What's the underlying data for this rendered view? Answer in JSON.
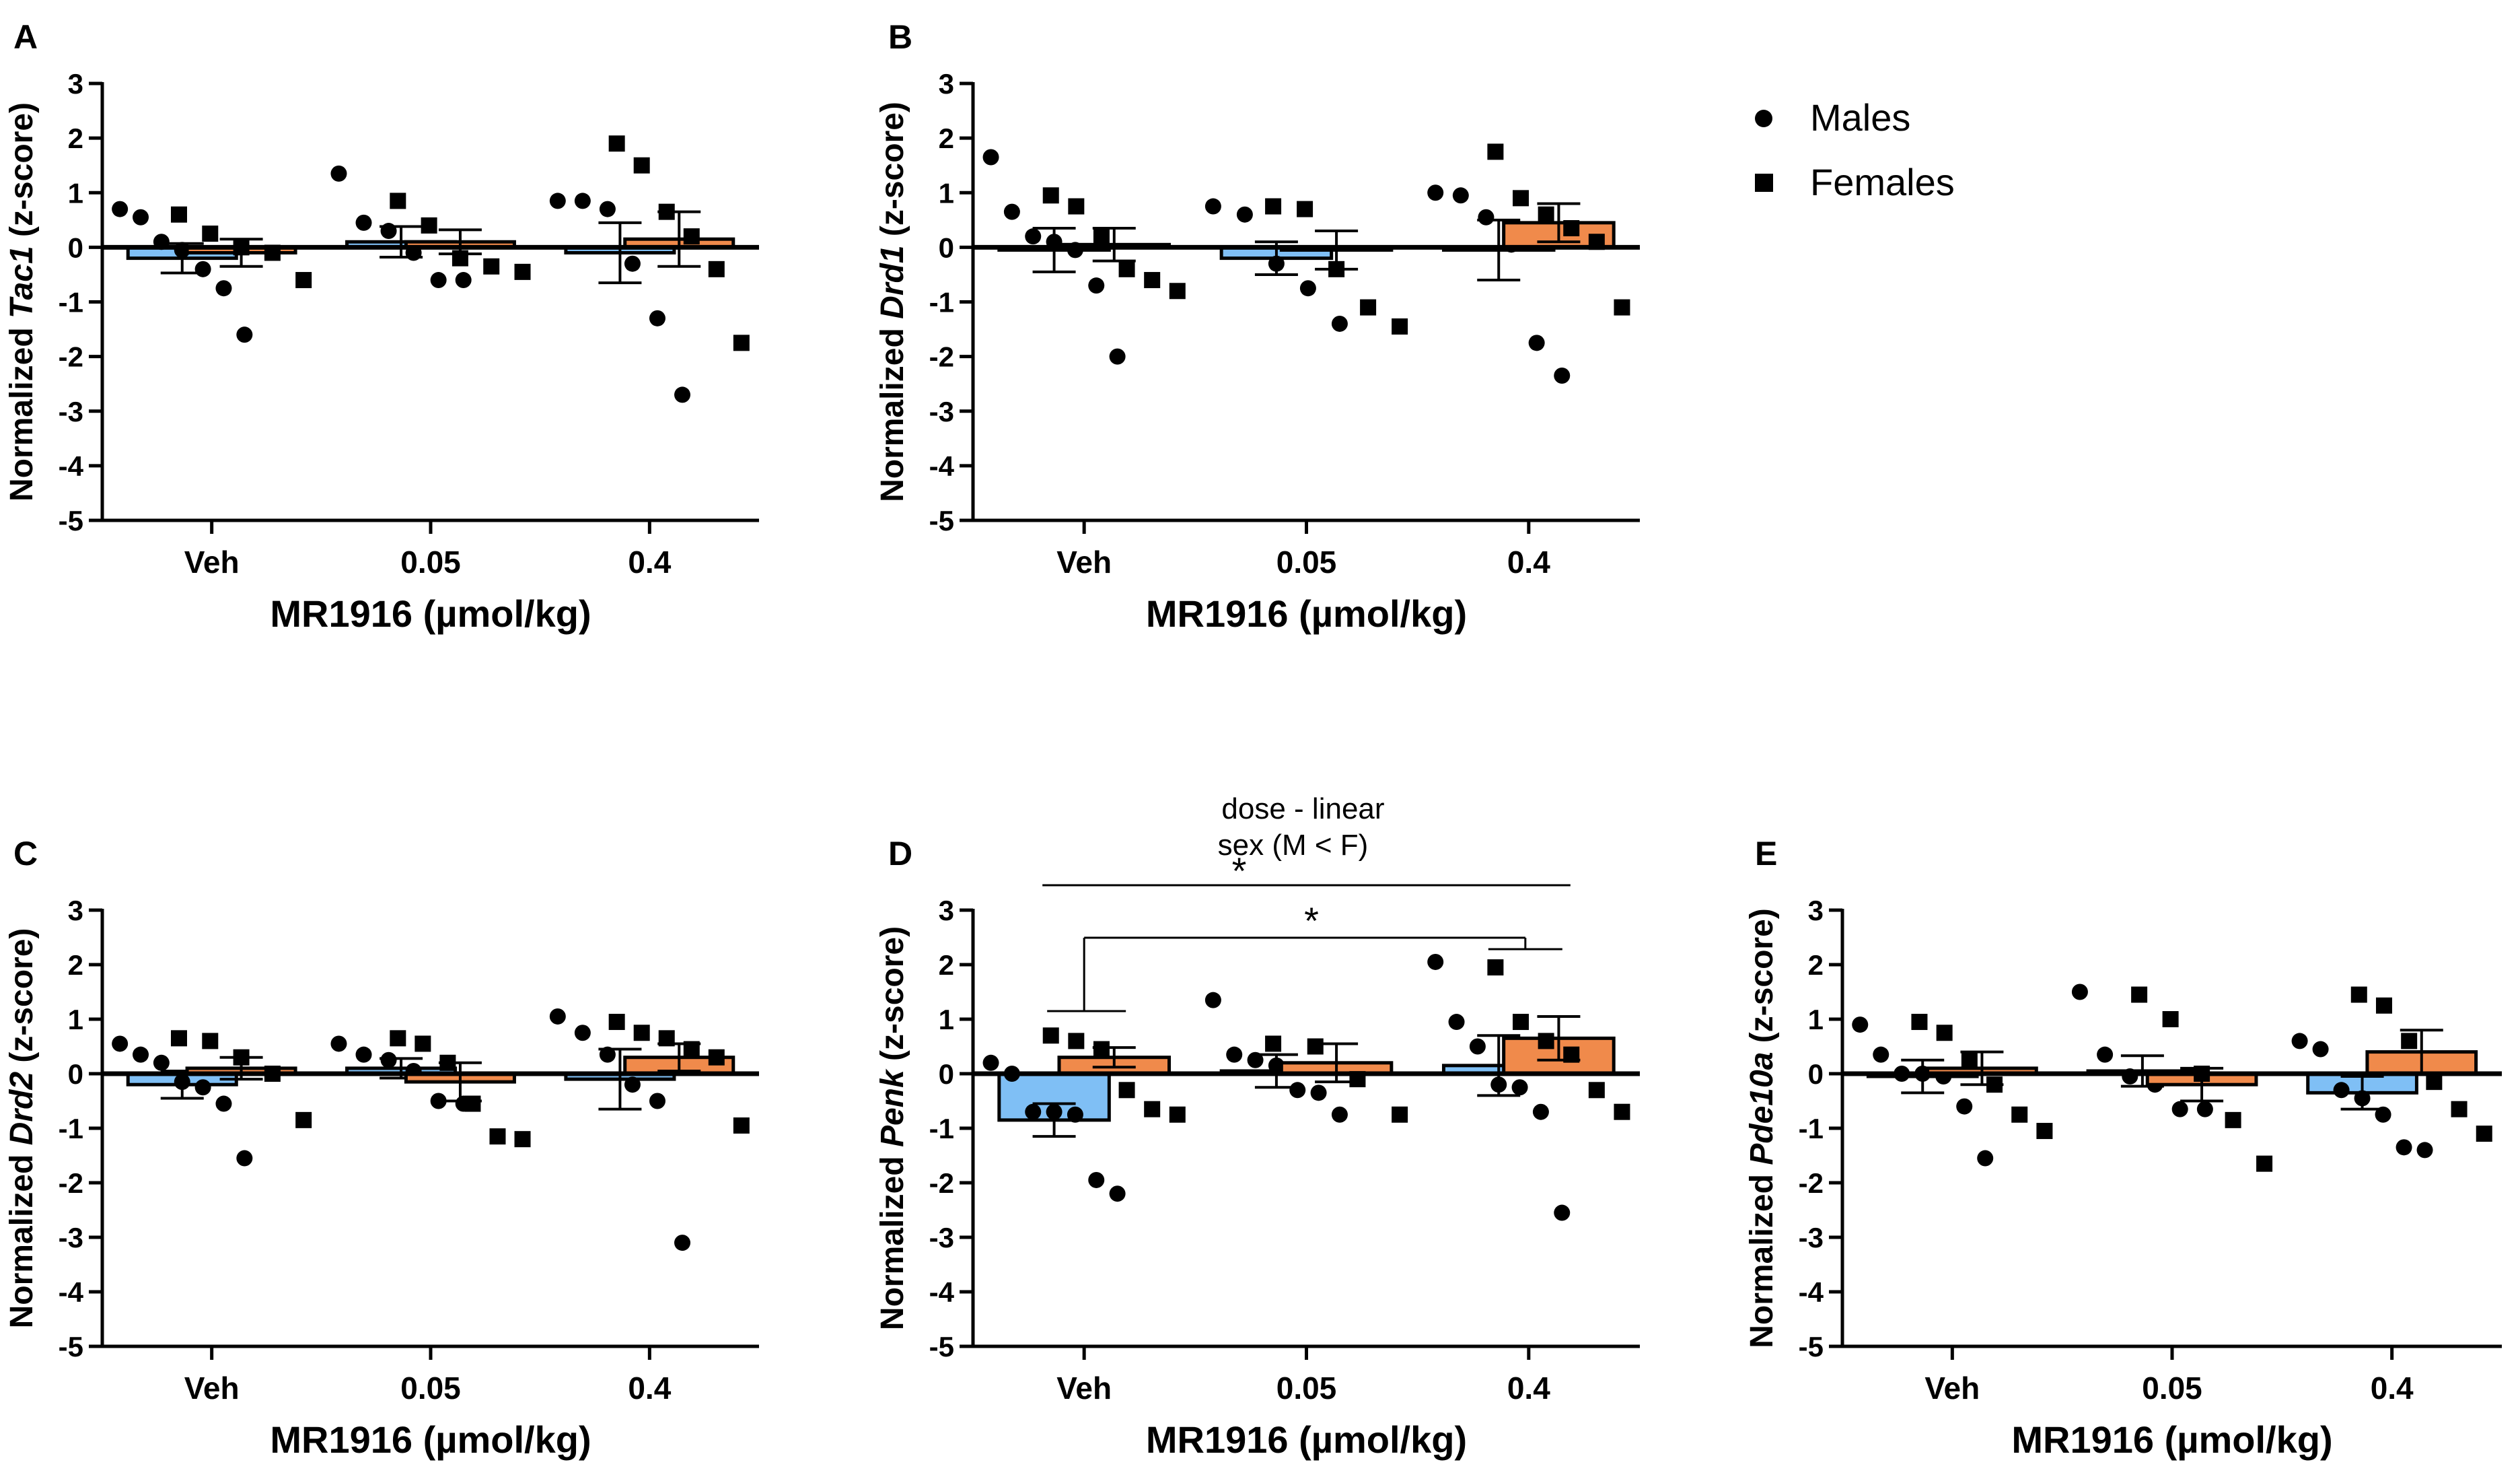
{
  "legend": {
    "position": "top-right",
    "entries": [
      {
        "label": "Males",
        "marker": "circle"
      },
      {
        "label": "Females",
        "marker": "square"
      }
    ]
  },
  "colors": {
    "males_bar": "#7fbff5",
    "females_bar": "#f08a4b",
    "ink": "#000000"
  },
  "chart_data": [
    {
      "panel": "A",
      "type": "bar",
      "ylabel_pre": "Normalized ",
      "gene": "Tac1",
      "ylabel_post": " (z-score)",
      "xlabel": "MR1916 (µmol/kg)",
      "categories": [
        "Veh",
        "0.05",
        "0.4"
      ],
      "ylim": [
        -5,
        3
      ],
      "yticks": [
        "3",
        "2",
        "1",
        "0",
        "-1",
        "-2",
        "-3",
        "-4",
        "-5"
      ],
      "series": [
        {
          "name": "Males",
          "marker": "circle",
          "values": [
            -0.2,
            0.1,
            -0.1
          ],
          "sem": [
            0.27,
            0.28,
            0.55
          ],
          "points": [
            [
              0.7,
              0.55,
              0.1,
              -0.05,
              -0.4,
              -0.75,
              -1.6
            ],
            [
              1.35,
              0.45,
              0.3,
              -0.1,
              -0.6,
              -0.6
            ],
            [
              0.85,
              0.85,
              0.7,
              -0.3,
              -1.3,
              -2.7
            ]
          ]
        },
        {
          "name": "Females",
          "marker": "square",
          "values": [
            -0.1,
            0.1,
            0.15
          ],
          "sem": [
            0.25,
            0.22,
            0.5
          ],
          "points": [
            [
              0.6,
              0.25,
              0.0,
              -0.1,
              -0.6
            ],
            [
              0.85,
              0.4,
              -0.2,
              -0.35,
              -0.45
            ],
            [
              1.9,
              1.5,
              0.65,
              0.2,
              -0.4,
              -1.75
            ]
          ]
        }
      ],
      "annotations": []
    },
    {
      "panel": "B",
      "type": "bar",
      "ylabel_pre": "Normalized ",
      "gene": "Drd1",
      "ylabel_post": " (z-score)",
      "xlabel": "MR1916 (µmol/kg)",
      "categories": [
        "Veh",
        "0.05",
        "0.4"
      ],
      "ylim": [
        -5,
        3
      ],
      "yticks": [
        "3",
        "2",
        "1",
        "0",
        "-1",
        "-2",
        "-3",
        "-4",
        "-5"
      ],
      "series": [
        {
          "name": "Males",
          "marker": "circle",
          "values": [
            -0.05,
            -0.2,
            -0.05
          ],
          "sem": [
            0.4,
            0.3,
            0.55
          ],
          "points": [
            [
              1.65,
              0.65,
              0.2,
              0.1,
              -0.05,
              -0.7,
              -2.0
            ],
            [
              0.75,
              0.6,
              -0.3,
              -0.75,
              -1.4
            ],
            [
              1.0,
              0.95,
              0.55,
              0.05,
              -1.75,
              -2.35
            ]
          ]
        },
        {
          "name": "Females",
          "marker": "square",
          "values": [
            0.05,
            -0.05,
            0.45
          ],
          "sem": [
            0.3,
            0.35,
            0.35
          ],
          "points": [
            [
              0.95,
              0.75,
              0.2,
              -0.4,
              -0.6,
              -0.8
            ],
            [
              0.75,
              0.7,
              -0.4,
              -1.1,
              -1.45
            ],
            [
              1.75,
              0.9,
              0.6,
              0.35,
              0.1,
              -1.1
            ]
          ]
        }
      ],
      "annotations": []
    },
    {
      "panel": "C",
      "type": "bar",
      "ylabel_pre": "Normalized ",
      "gene": "Drd2",
      "ylabel_post": " (z-score)",
      "xlabel": "MR1916 (µmol/kg)",
      "categories": [
        "Veh",
        "0.05",
        "0.4"
      ],
      "ylim": [
        -5,
        3
      ],
      "yticks": [
        "3",
        "2",
        "1",
        "0",
        "-1",
        "-2",
        "-3",
        "-4",
        "-5"
      ],
      "series": [
        {
          "name": "Males",
          "marker": "circle",
          "values": [
            -0.2,
            0.1,
            -0.1
          ],
          "sem": [
            0.25,
            0.18,
            0.55
          ],
          "points": [
            [
              0.55,
              0.35,
              0.2,
              -0.15,
              -0.25,
              -0.55,
              -1.55
            ],
            [
              0.55,
              0.35,
              0.25,
              0.05,
              -0.5,
              -0.55
            ],
            [
              1.05,
              0.75,
              0.35,
              -0.2,
              -0.5,
              -3.1
            ]
          ]
        },
        {
          "name": "Females",
          "marker": "square",
          "values": [
            0.1,
            -0.15,
            0.3
          ],
          "sem": [
            0.2,
            0.35,
            0.25
          ],
          "points": [
            [
              0.65,
              0.6,
              0.3,
              0.0,
              -0.85
            ],
            [
              0.65,
              0.55,
              0.2,
              -0.55,
              -1.15,
              -1.2
            ],
            [
              0.95,
              0.75,
              0.65,
              0.45,
              0.3,
              -0.95
            ]
          ]
        }
      ],
      "annotations": []
    },
    {
      "panel": "D",
      "type": "bar",
      "ylabel_pre": "Normalized ",
      "gene": "Penk",
      "ylabel_post": " (z-score)",
      "xlabel": "MR1916 (µmol/kg)",
      "categories": [
        "Veh",
        "0.05",
        "0.4"
      ],
      "ylim": [
        -5,
        3
      ],
      "yticks": [
        "3",
        "2",
        "1",
        "0",
        "-1",
        "-2",
        "-3",
        "-4",
        "-5"
      ],
      "series": [
        {
          "name": "Males",
          "marker": "circle",
          "values": [
            -0.85,
            0.05,
            0.15
          ],
          "sem": [
            0.3,
            0.3,
            0.55
          ],
          "points": [
            [
              0.2,
              0.0,
              -0.7,
              -0.7,
              -0.75,
              -1.95,
              -2.2
            ],
            [
              1.35,
              0.35,
              0.25,
              0.15,
              -0.3,
              -0.35,
              -0.75
            ],
            [
              2.05,
              0.95,
              0.5,
              -0.2,
              -0.25,
              -0.7,
              -2.55
            ]
          ]
        },
        {
          "name": "Females",
          "marker": "square",
          "values": [
            0.3,
            0.2,
            0.65
          ],
          "sem": [
            0.18,
            0.35,
            0.4
          ],
          "points": [
            [
              0.7,
              0.6,
              0.45,
              -0.3,
              -0.65,
              -0.75
            ],
            [
              0.55,
              0.5,
              -0.1,
              -0.75
            ],
            [
              1.95,
              0.95,
              0.6,
              0.35,
              -0.3,
              -0.7
            ]
          ]
        }
      ],
      "annotations": [
        {
          "text": "*",
          "note": "dose - linear",
          "note2": "sex (M < F)"
        },
        {
          "text": "*"
        }
      ]
    },
    {
      "panel": "E",
      "type": "bar",
      "ylabel_pre": "Normalized ",
      "gene": "Pde10a",
      "ylabel_post": " (z-score)",
      "xlabel": "MR1916 (µmol/kg)",
      "categories": [
        "Veh",
        "0.05",
        "0.4"
      ],
      "ylim": [
        -5,
        3
      ],
      "yticks": [
        "3",
        "2",
        "1",
        "0",
        "-1",
        "-2",
        "-3",
        "-4",
        "-5"
      ],
      "series": [
        {
          "name": "Males",
          "marker": "circle",
          "values": [
            -0.05,
            0.05,
            -0.35
          ],
          "sem": [
            0.3,
            0.28,
            0.3
          ],
          "points": [
            [
              0.9,
              0.35,
              0.0,
              0.0,
              -0.05,
              -0.6,
              -1.55
            ],
            [
              1.5,
              0.35,
              -0.05,
              -0.2,
              -0.65,
              -0.65
            ],
            [
              0.6,
              0.45,
              -0.3,
              -0.45,
              -0.75,
              -1.35,
              -1.4
            ]
          ]
        },
        {
          "name": "Females",
          "marker": "square",
          "values": [
            0.1,
            -0.2,
            0.4
          ],
          "sem": [
            0.3,
            0.3,
            0.4
          ],
          "points": [
            [
              0.95,
              0.75,
              0.25,
              -0.2,
              -0.75,
              -1.05
            ],
            [
              1.45,
              1.0,
              0.0,
              -0.85,
              -1.65
            ],
            [
              1.45,
              1.25,
              0.6,
              -0.15,
              -0.65,
              -1.1
            ]
          ]
        }
      ],
      "annotations": []
    }
  ]
}
